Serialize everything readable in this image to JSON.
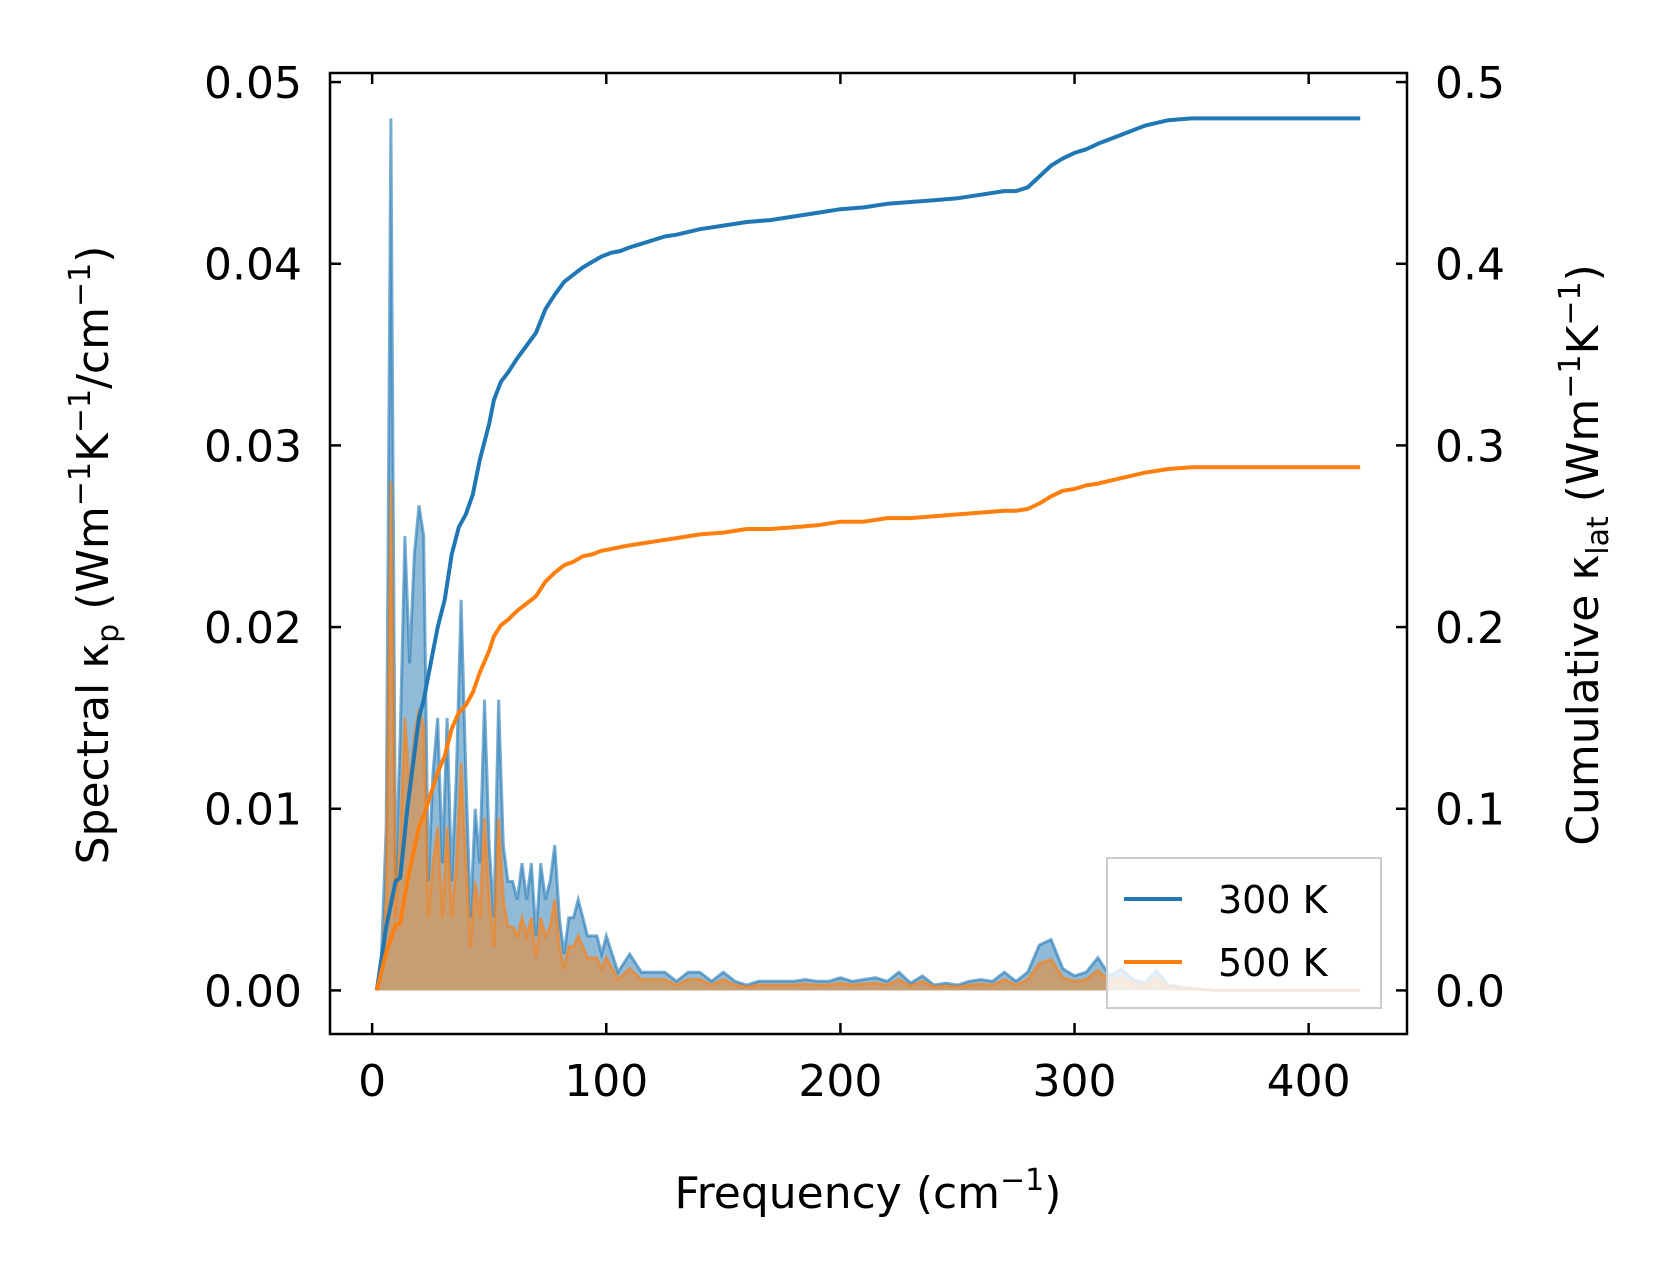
{
  "chart_data": {
    "type": "line",
    "xlabel": {
      "main": "Frequency (cm",
      "sup": "−1",
      "tail": ")"
    },
    "ylabel_left": {
      "p1": "Spectral κ",
      "sub": "p",
      "p2": " (Wm",
      "sup1": "−1",
      "p3": "K",
      "sup2": "−1",
      "p4": "/cm",
      "sup3": "−1",
      "p5": ")"
    },
    "ylabel_right": {
      "p1": "Cumulative κ",
      "sub": "lat",
      "p2": " (Wm",
      "sup1": "−1",
      "p3": "K",
      "sup2": "−1",
      "p4": ")"
    },
    "xlim": [
      -18,
      442
    ],
    "ylim_left": [
      -0.0024,
      0.0505
    ],
    "ylim_right": [
      -0.024,
      0.505
    ],
    "x_ticks": [
      "0",
      "100",
      "200",
      "300",
      "400"
    ],
    "y_ticks_left": [
      "0.00",
      "0.01",
      "0.02",
      "0.03",
      "0.04",
      "0.05"
    ],
    "y_ticks_right": [
      "0.0",
      "0.1",
      "0.2",
      "0.3",
      "0.4",
      "0.5"
    ],
    "x_tick_values": [
      0,
      100,
      200,
      300,
      400
    ],
    "y_tick_values_left": [
      0,
      0.01,
      0.02,
      0.03,
      0.04,
      0.05
    ],
    "y_tick_values_right": [
      0,
      0.1,
      0.2,
      0.3,
      0.4,
      0.5
    ],
    "legend": {
      "placement": "lower-right",
      "entries": [
        "300 K",
        "500 K"
      ]
    },
    "colors": {
      "300 K": "#1f77b4",
      "500 K": "#ff7f0e"
    },
    "spectral": [
      {
        "name": "300 K",
        "x": [
          2,
          4,
          6,
          8,
          10,
          12,
          14,
          16,
          18,
          20,
          22,
          24,
          26,
          28,
          30,
          32,
          34,
          36,
          38,
          40,
          42,
          44,
          46,
          48,
          50,
          52,
          54,
          56,
          58,
          60,
          62,
          64,
          66,
          68,
          70,
          72,
          74,
          76,
          78,
          80,
          82,
          84,
          86,
          88,
          90,
          92,
          94,
          96,
          98,
          100,
          105,
          110,
          115,
          120,
          125,
          130,
          135,
          140,
          145,
          150,
          155,
          160,
          165,
          170,
          175,
          180,
          185,
          190,
          195,
          200,
          205,
          210,
          215,
          220,
          225,
          230,
          235,
          240,
          245,
          250,
          255,
          260,
          265,
          270,
          275,
          280,
          285,
          290,
          295,
          300,
          305,
          310,
          315,
          320,
          325,
          330,
          335,
          340,
          345,
          350,
          360,
          380,
          400,
          422
        ],
        "y": [
          0,
          0.002,
          0.009,
          0.048,
          0.006,
          0.014,
          0.025,
          0.018,
          0.024,
          0.0267,
          0.025,
          0.006,
          0.012,
          0.015,
          0.007,
          0.015,
          0.006,
          0.012,
          0.0215,
          0.012,
          0.004,
          0.01,
          0.007,
          0.016,
          0.008,
          0.004,
          0.016,
          0.008,
          0.006,
          0.006,
          0.005,
          0.007,
          0.005,
          0.007,
          0.003,
          0.007,
          0.005,
          0.006,
          0.008,
          0.004,
          0.002,
          0.004,
          0.004,
          0.005,
          0.004,
          0.003,
          0.003,
          0.003,
          0.002,
          0.003,
          0.001,
          0.002,
          0.001,
          0.001,
          0.001,
          0.0005,
          0.001,
          0.001,
          0.0005,
          0.001,
          0.0005,
          0.0003,
          0.0005,
          0.0005,
          0.0005,
          0.0005,
          0.0006,
          0.0005,
          0.0005,
          0.0007,
          0.0005,
          0.0006,
          0.0007,
          0.0005,
          0.001,
          0.0004,
          0.0008,
          0.0003,
          0.0004,
          0.0003,
          0.0005,
          0.0006,
          0.0005,
          0.001,
          0.0005,
          0.001,
          0.0025,
          0.0028,
          0.0012,
          0.0008,
          0.001,
          0.0018,
          0.0008,
          0.0012,
          0.0006,
          0.0004,
          0.0011,
          0.0003,
          0.0002,
          0.0001,
          0,
          0,
          0,
          0
        ]
      },
      {
        "name": "500 K",
        "x": [
          2,
          4,
          6,
          8,
          10,
          12,
          14,
          16,
          18,
          20,
          22,
          24,
          26,
          28,
          30,
          32,
          34,
          36,
          38,
          40,
          42,
          44,
          46,
          48,
          50,
          52,
          54,
          56,
          58,
          60,
          62,
          64,
          66,
          68,
          70,
          72,
          74,
          76,
          78,
          80,
          82,
          84,
          86,
          88,
          90,
          92,
          94,
          96,
          98,
          100,
          105,
          110,
          115,
          120,
          125,
          130,
          135,
          140,
          145,
          150,
          155,
          160,
          165,
          170,
          175,
          180,
          185,
          190,
          195,
          200,
          205,
          210,
          215,
          220,
          225,
          230,
          235,
          240,
          245,
          250,
          255,
          260,
          265,
          270,
          275,
          280,
          285,
          290,
          295,
          300,
          305,
          310,
          315,
          320,
          325,
          330,
          335,
          340,
          345,
          350,
          360,
          380,
          400,
          422
        ],
        "y": [
          0,
          0.0012,
          0.005,
          0.028,
          0.004,
          0.008,
          0.015,
          0.011,
          0.014,
          0.0155,
          0.0145,
          0.004,
          0.007,
          0.009,
          0.004,
          0.009,
          0.004,
          0.007,
          0.0125,
          0.007,
          0.0024,
          0.006,
          0.004,
          0.0095,
          0.005,
          0.0024,
          0.0095,
          0.005,
          0.0035,
          0.0035,
          0.003,
          0.004,
          0.003,
          0.004,
          0.0018,
          0.004,
          0.003,
          0.0035,
          0.005,
          0.0024,
          0.0012,
          0.0024,
          0.0024,
          0.003,
          0.0024,
          0.0018,
          0.0018,
          0.0018,
          0.0012,
          0.0018,
          0.0006,
          0.0012,
          0.0006,
          0.0006,
          0.0006,
          0.0003,
          0.0006,
          0.0006,
          0.0003,
          0.0006,
          0.0003,
          0.0002,
          0.0003,
          0.0003,
          0.0003,
          0.0003,
          0.00035,
          0.0003,
          0.0003,
          0.0004,
          0.0003,
          0.00035,
          0.0004,
          0.0003,
          0.0006,
          0.00025,
          0.0005,
          0.0002,
          0.00025,
          0.0002,
          0.0003,
          0.00035,
          0.0003,
          0.0006,
          0.0003,
          0.0006,
          0.0015,
          0.0017,
          0.0007,
          0.0005,
          0.0006,
          0.0011,
          0.0005,
          0.0007,
          0.00035,
          0.00025,
          0.00065,
          0.0002,
          0.0001,
          0.0001,
          0,
          0,
          0,
          0
        ]
      }
    ],
    "cumulative": [
      {
        "name": "300 K",
        "x": [
          2,
          6,
          10,
          12,
          15,
          18,
          20,
          22,
          25,
          28,
          31,
          34,
          37,
          40,
          43,
          46,
          50,
          52,
          55,
          58,
          62,
          66,
          70,
          74,
          78,
          82,
          86,
          90,
          94,
          98,
          102,
          106,
          110,
          115,
          120,
          125,
          130,
          140,
          150,
          160,
          170,
          180,
          190,
          200,
          210,
          220,
          230,
          240,
          250,
          260,
          270,
          275,
          280,
          285,
          290,
          295,
          300,
          305,
          310,
          320,
          330,
          340,
          350,
          360,
          380,
          400,
          422
        ],
        "y": [
          0,
          0.035,
          0.06,
          0.062,
          0.1,
          0.13,
          0.15,
          0.16,
          0.18,
          0.2,
          0.215,
          0.24,
          0.255,
          0.262,
          0.273,
          0.292,
          0.312,
          0.325,
          0.335,
          0.34,
          0.348,
          0.355,
          0.362,
          0.375,
          0.383,
          0.39,
          0.394,
          0.398,
          0.401,
          0.404,
          0.406,
          0.407,
          0.409,
          0.411,
          0.413,
          0.415,
          0.416,
          0.419,
          0.421,
          0.423,
          0.424,
          0.426,
          0.428,
          0.43,
          0.431,
          0.433,
          0.434,
          0.435,
          0.436,
          0.438,
          0.44,
          0.44,
          0.442,
          0.448,
          0.454,
          0.458,
          0.461,
          0.463,
          0.466,
          0.471,
          0.476,
          0.479,
          0.48,
          0.48,
          0.48,
          0.48,
          0.48
        ]
      },
      {
        "name": "500 K",
        "x": [
          2,
          6,
          10,
          12,
          15,
          18,
          20,
          22,
          25,
          28,
          31,
          34,
          37,
          40,
          43,
          46,
          50,
          52,
          55,
          58,
          62,
          66,
          70,
          74,
          78,
          82,
          86,
          90,
          94,
          98,
          102,
          106,
          110,
          115,
          120,
          125,
          130,
          140,
          150,
          160,
          170,
          180,
          190,
          200,
          210,
          220,
          230,
          240,
          250,
          260,
          270,
          275,
          280,
          285,
          290,
          295,
          300,
          305,
          310,
          320,
          330,
          340,
          350,
          360,
          380,
          400,
          422
        ],
        "y": [
          0,
          0.021,
          0.036,
          0.037,
          0.06,
          0.078,
          0.09,
          0.096,
          0.108,
          0.12,
          0.129,
          0.144,
          0.153,
          0.157,
          0.164,
          0.175,
          0.187,
          0.195,
          0.201,
          0.204,
          0.209,
          0.213,
          0.217,
          0.225,
          0.23,
          0.234,
          0.236,
          0.239,
          0.24,
          0.242,
          0.243,
          0.244,
          0.245,
          0.246,
          0.247,
          0.248,
          0.249,
          0.251,
          0.252,
          0.254,
          0.254,
          0.255,
          0.256,
          0.258,
          0.258,
          0.26,
          0.26,
          0.261,
          0.262,
          0.263,
          0.264,
          0.264,
          0.265,
          0.268,
          0.272,
          0.275,
          0.276,
          0.278,
          0.279,
          0.282,
          0.285,
          0.287,
          0.288,
          0.288,
          0.288,
          0.288,
          0.288
        ]
      }
    ]
  }
}
